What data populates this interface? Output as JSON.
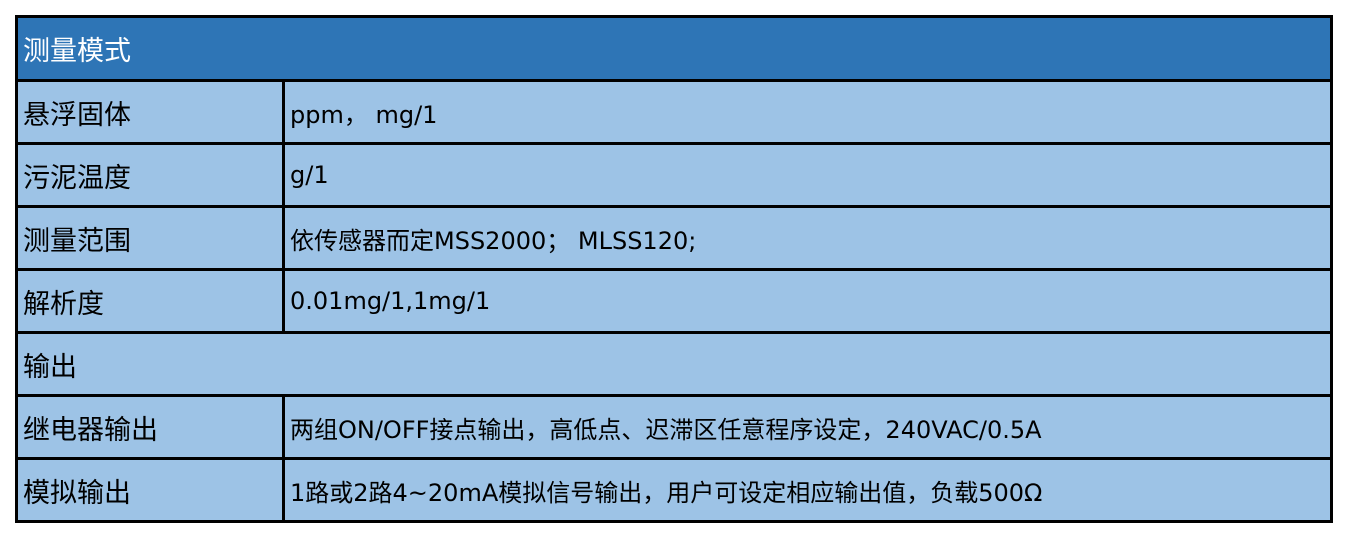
{
  "header": {
    "title": "测量模式"
  },
  "rows": [
    {
      "label": "悬浮固体",
      "value": "ppm， mg/1"
    },
    {
      "label": "污泥温度",
      "value": "g/1"
    },
    {
      "label": "测量范围",
      "value": "依传感器而定MSS2000； MLSS120;"
    },
    {
      "label": "解析度",
      "value": "0.01mg/1,1mg/1"
    }
  ],
  "section": {
    "title": "输出"
  },
  "output_rows": [
    {
      "label": "继电器输出",
      "value": "两组ON/OFF接点输出，高低点、迟滞区任意程序设定，240VAC/0.5A"
    },
    {
      "label": "模拟输出",
      "value": "1路或2路4~20mA模拟信号输出，用户可设定相应输出值，负载500Ω"
    }
  ],
  "colors": {
    "header_bg": "#2e75b6",
    "row_bg": "#9dc3e6",
    "border": "#000000"
  }
}
